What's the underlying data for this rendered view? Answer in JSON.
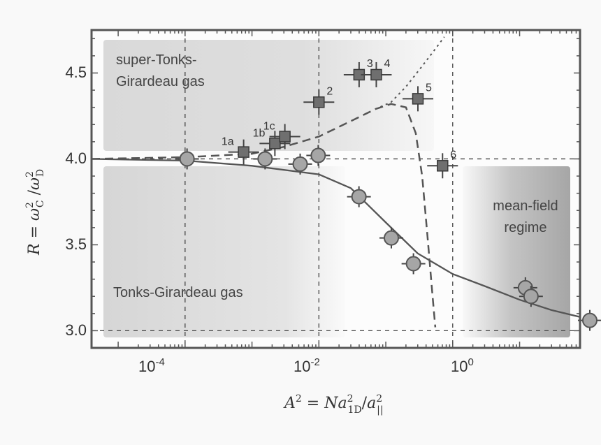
{
  "chart_data": {
    "type": "scatter",
    "x_scale": "log",
    "xlim": [
      4e-06,
      80
    ],
    "ylim": [
      2.9,
      4.75
    ],
    "xticks": [
      "10^-4",
      "10^-2",
      "10^0"
    ],
    "yticks": [
      "3.0",
      "3.5",
      "4.0",
      "4.5"
    ],
    "xlabel": "A² = Na²₁D/a²||",
    "ylabel": "R = ω²C/ω²D",
    "regions": [
      {
        "label_lines": [
          "super-Tonks-",
          "Girardeau gas"
        ]
      },
      {
        "label_lines": [
          "Tonks-Girardeau gas"
        ]
      },
      {
        "label_lines": [
          "mean-field",
          "regime"
        ]
      }
    ],
    "series": [
      {
        "marker": "circle",
        "points": [
          {
            "x": 0.000107,
            "y": 4.0
          },
          {
            "x": 0.00157,
            "y": 4.0
          },
          {
            "x": 0.00525,
            "y": 3.97
          },
          {
            "x": 0.00977,
            "y": 4.02
          },
          {
            "x": 0.0397,
            "y": 3.78
          },
          {
            "x": 0.121,
            "y": 3.54
          },
          {
            "x": 0.259,
            "y": 3.39
          },
          {
            "x": 12.2,
            "y": 3.25
          },
          {
            "x": 14.8,
            "y": 3.2
          },
          {
            "x": 112,
            "y": 3.06
          }
        ]
      },
      {
        "marker": "square",
        "points": [
          {
            "x": 0.00075,
            "y": 4.04,
            "label": "1a"
          },
          {
            "x": 0.0022,
            "y": 4.09,
            "label": "1b"
          },
          {
            "x": 0.0031,
            "y": 4.13,
            "label": "1c"
          },
          {
            "x": 0.01,
            "y": 4.33,
            "label": "2"
          },
          {
            "x": 0.0399,
            "y": 4.49,
            "label": "3"
          },
          {
            "x": 0.0721,
            "y": 4.49,
            "label": "4"
          },
          {
            "x": 0.302,
            "y": 4.35,
            "label": "5"
          },
          {
            "x": 0.705,
            "y": 3.96,
            "label": "6"
          }
        ]
      }
    ],
    "curves": [
      {
        "style": "solid",
        "x": [
          4e-06,
          0.0001,
          0.001,
          0.01,
          0.03,
          0.1,
          0.3,
          1,
          3,
          10,
          30,
          80
        ],
        "y": [
          4.0,
          3.99,
          3.96,
          3.91,
          3.83,
          3.63,
          3.45,
          3.33,
          3.26,
          3.18,
          3.12,
          3.08
        ]
      },
      {
        "style": "dashed",
        "x": [
          4e-06,
          0.0001,
          0.001,
          0.003,
          0.01,
          0.03,
          0.07,
          0.12,
          0.2,
          0.28,
          0.35,
          0.42,
          0.5,
          0.55
        ],
        "y": [
          4.0,
          4.01,
          4.03,
          4.07,
          4.13,
          4.22,
          4.29,
          4.32,
          4.3,
          4.15,
          3.9,
          3.55,
          3.2,
          3.02
        ]
      },
      {
        "style": "dotted",
        "x": [
          0.07,
          0.12,
          0.2,
          0.35,
          0.55,
          0.75
        ],
        "y": [
          4.29,
          4.33,
          4.42,
          4.54,
          4.64,
          4.71
        ]
      }
    ]
  }
}
